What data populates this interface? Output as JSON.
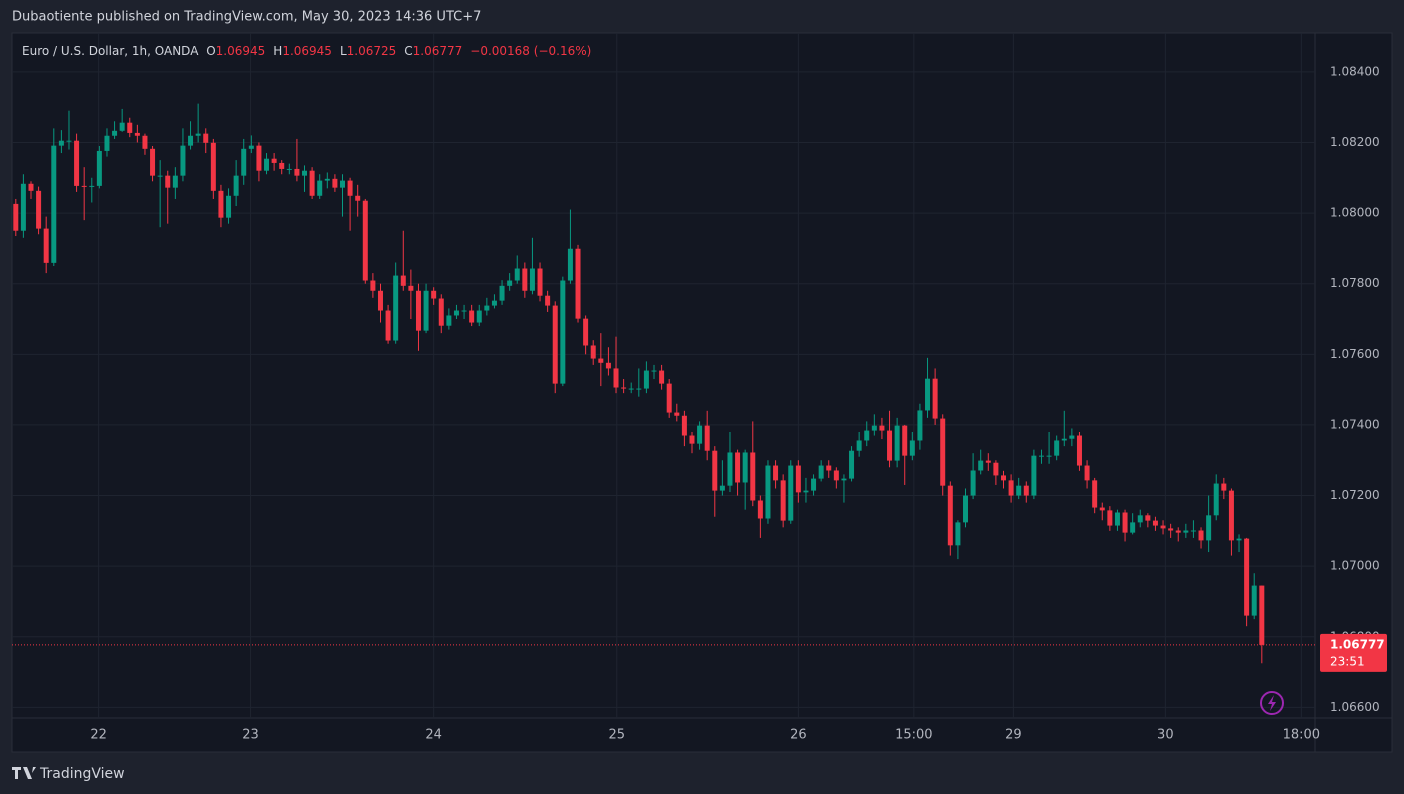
{
  "header": {
    "title": "Dubaotiente published on TradingView.com, May 30, 2023 14:36 UTC+7"
  },
  "footer": {
    "brand": "TradingView"
  },
  "chart_data": {
    "type": "candlestick",
    "legend": {
      "symbol": "Euro / U.S. Dollar, 1h, OANDA",
      "fields": [
        {
          "label": "O",
          "value": "1.06945"
        },
        {
          "label": "H",
          "value": "1.06945"
        },
        {
          "label": "L",
          "value": "1.06725"
        },
        {
          "label": "C",
          "value": "1.06777"
        }
      ],
      "change": "−0.00168 (−0.16%)"
    },
    "countdown": "23:51",
    "up_color": "#089981",
    "down_color": "#f23645",
    "grid": true,
    "ylim": [
      1.0657,
      1.0851
    ],
    "yticks": [
      {
        "value": 1.084,
        "label": "1.08400"
      },
      {
        "value": 1.082,
        "label": "1.08200"
      },
      {
        "value": 1.08,
        "label": "1.08000"
      },
      {
        "value": 1.078,
        "label": "1.07800"
      },
      {
        "value": 1.076,
        "label": "1.07600"
      },
      {
        "value": 1.074,
        "label": "1.07400"
      },
      {
        "value": 1.072,
        "label": "1.07200"
      },
      {
        "value": 1.07,
        "label": "1.07000"
      },
      {
        "value": 1.068,
        "label": "1.06800"
      },
      {
        "value": 1.066,
        "label": "1.06600"
      }
    ],
    "xlim": [
      -0.5,
      171
    ],
    "xticks": [
      {
        "value": 10.9,
        "label": "22"
      },
      {
        "value": 30.9,
        "label": "23"
      },
      {
        "value": 55,
        "label": "24"
      },
      {
        "value": 79.1,
        "label": "25"
      },
      {
        "value": 103,
        "label": "26"
      },
      {
        "value": 118.2,
        "label": "15:00"
      },
      {
        "value": 131.3,
        "label": "29"
      },
      {
        "value": 151.3,
        "label": "30"
      },
      {
        "value": 169.2,
        "label": "18:00"
      }
    ],
    "open": [
      1.08026,
      1.0795,
      1.08083,
      1.08063,
      1.07956,
      1.07859,
      1.08191,
      1.08205,
      1.08205,
      1.08077,
      1.08075,
      1.08077,
      1.08176,
      1.08219,
      1.08233,
      1.08256,
      1.08227,
      1.08219,
      1.08182,
      1.08106,
      1.08106,
      1.08072,
      1.08106,
      1.08191,
      1.08219,
      1.08225,
      1.08199,
      1.08063,
      1.07987,
      1.08049,
      1.08106,
      1.08182,
      1.08191,
      1.0812,
      1.08154,
      1.08142,
      1.08125,
      1.08125,
      1.08106,
      1.0812,
      1.08049,
      1.08092,
      1.08097,
      1.08072,
      1.08092,
      1.08049,
      1.08035,
      1.07809,
      1.0778,
      1.07724,
      1.07639,
      1.07823,
      1.07794,
      1.0778,
      1.07667,
      1.0778,
      1.07758,
      1.07681,
      1.0771,
      1.07724,
      1.07724,
      1.0769,
      1.07724,
      1.07738,
      1.07752,
      1.07794,
      1.07809,
      1.07843,
      1.0778,
      1.07843,
      1.07766,
      1.07738,
      1.07517,
      1.07809,
      1.07899,
      1.07701,
      1.07625,
      1.07588,
      1.07576,
      1.0756,
      1.07506,
      1.07503,
      1.07503,
      1.07503,
      1.07554,
      1.07554,
      1.07517,
      1.07435,
      1.07426,
      1.0737,
      1.07347,
      1.07398,
      1.07327,
      1.07214,
      1.07228,
      1.07322,
      1.07237,
      1.07322,
      1.07186,
      1.07135,
      1.07285,
      1.07243,
      1.07129,
      1.07285,
      1.07209,
      1.07214,
      1.07248,
      1.07285,
      1.07271,
      1.07243,
      1.07248,
      1.07327,
      1.07356,
      1.07384,
      1.07398,
      1.07384,
      1.07299,
      1.07398,
      1.07313,
      1.07356,
      1.07441,
      1.07531,
      1.07418,
      1.07228,
      1.07059,
      1.07124,
      1.072,
      1.07271,
      1.07299,
      1.07293,
      1.07257,
      1.07243,
      1.072,
      1.07228,
      1.072,
      1.07313,
      1.07313,
      1.07313,
      1.07356,
      1.07361,
      1.0737,
      1.07285,
      1.07243,
      1.07166,
      1.07158,
      1.07115,
      1.07152,
      1.07095,
      1.07124,
      1.07144,
      1.07129,
      1.07115,
      1.07107,
      1.07101,
      1.07095,
      1.07101,
      1.07101,
      1.07073,
      1.07144,
      1.07234,
      1.07214,
      1.07073,
      1.07078,
      1.0686,
      1.06945
    ],
    "high": [
      1.0804,
      1.0811,
      1.0809,
      1.08075,
      1.0799,
      1.0824,
      1.08235,
      1.0829,
      1.08225,
      1.0813,
      1.081,
      1.0819,
      1.0824,
      1.0826,
      1.08295,
      1.0827,
      1.0825,
      1.08225,
      1.0819,
      1.0815,
      1.0812,
      1.0813,
      1.0824,
      1.0826,
      1.0831,
      1.0824,
      1.0821,
      1.0808,
      1.0807,
      1.0815,
      1.0821,
      1.0822,
      1.082,
      1.0817,
      1.0817,
      1.0815,
      1.0814,
      1.0821,
      1.08135,
      1.0813,
      1.0811,
      1.08115,
      1.0811,
      1.0811,
      1.081,
      1.0808,
      1.0804,
      1.0783,
      1.078,
      1.0774,
      1.0786,
      1.0795,
      1.0784,
      1.078,
      1.078,
      1.0779,
      1.0777,
      1.0773,
      1.0774,
      1.0774,
      1.0774,
      1.0774,
      1.0776,
      1.0777,
      1.0781,
      1.0783,
      1.0788,
      1.0786,
      1.0793,
      1.0786,
      1.0778,
      1.0775,
      1.0782,
      1.0801,
      1.0791,
      1.0771,
      1.0764,
      1.0766,
      1.0762,
      1.0765,
      1.0753,
      1.0752,
      1.0756,
      1.0758,
      1.0757,
      1.0757,
      1.0753,
      1.0746,
      1.0744,
      1.0738,
      1.0741,
      1.0744,
      1.0734,
      1.073,
      1.0738,
      1.0733,
      1.0733,
      1.0741,
      1.072,
      1.073,
      1.073,
      1.0726,
      1.073,
      1.073,
      1.0725,
      1.0726,
      1.073,
      1.073,
      1.0728,
      1.0726,
      1.0734,
      1.0738,
      1.0741,
      1.0743,
      1.0742,
      1.0744,
      1.0742,
      1.074,
      1.0738,
      1.0746,
      1.0759,
      1.0756,
      1.0743,
      1.0724,
      1.0713,
      1.0722,
      1.0732,
      1.0733,
      1.0732,
      1.073,
      1.0727,
      1.0726,
      1.0725,
      1.0724,
      1.0733,
      1.0733,
      1.0738,
      1.0737,
      1.0744,
      1.0739,
      1.0738,
      1.073,
      1.0725,
      1.0718,
      1.0717,
      1.0716,
      1.0716,
      1.0715,
      1.0716,
      1.0715,
      1.0714,
      1.0713,
      1.0712,
      1.0711,
      1.0712,
      1.0713,
      1.0711,
      1.072,
      1.0726,
      1.0725,
      1.0722,
      1.0709,
      1.0708,
      1.0698,
      1.06945
    ],
    "low": [
      1.07935,
      1.0793,
      1.0804,
      1.0794,
      1.0783,
      1.0785,
      1.0817,
      1.0818,
      1.0806,
      1.0798,
      1.0803,
      1.0807,
      1.0816,
      1.0821,
      1.0823,
      1.08215,
      1.082,
      1.08165,
      1.0809,
      1.0796,
      1.0797,
      1.0804,
      1.0809,
      1.0818,
      1.082,
      1.0817,
      1.0804,
      1.0796,
      1.0797,
      1.0802,
      1.0808,
      1.0817,
      1.0809,
      1.0811,
      1.0812,
      1.0811,
      1.0811,
      1.0809,
      1.0806,
      1.0804,
      1.0804,
      1.0807,
      1.0806,
      1.0799,
      1.0795,
      1.0799,
      1.078,
      1.0776,
      1.0769,
      1.0763,
      1.0763,
      1.0778,
      1.077,
      1.0761,
      1.0766,
      1.0774,
      1.0766,
      1.0767,
      1.077,
      1.077,
      1.0768,
      1.0768,
      1.0771,
      1.0773,
      1.0774,
      1.0778,
      1.078,
      1.0776,
      1.0777,
      1.0775,
      1.0772,
      1.0749,
      1.0751,
      1.078,
      1.0769,
      1.076,
      1.0757,
      1.0751,
      1.0754,
      1.0749,
      1.0749,
      1.0749,
      1.0748,
      1.0749,
      1.0753,
      1.075,
      1.0742,
      1.0741,
      1.0734,
      1.0732,
      1.0733,
      1.073,
      1.0714,
      1.072,
      1.0721,
      1.072,
      1.0716,
      1.0717,
      1.0708,
      1.0712,
      1.0722,
      1.0711,
      1.0712,
      1.0718,
      1.0718,
      1.072,
      1.0724,
      1.0725,
      1.0722,
      1.0718,
      1.0724,
      1.0731,
      1.0734,
      1.0737,
      1.0736,
      1.0728,
      1.0728,
      1.0723,
      1.073,
      1.0733,
      1.0742,
      1.074,
      1.072,
      1.0703,
      1.0702,
      1.0711,
      1.0719,
      1.0726,
      1.0727,
      1.0723,
      1.0722,
      1.0718,
      1.0719,
      1.0718,
      1.0719,
      1.0729,
      1.0729,
      1.073,
      1.0734,
      1.0734,
      1.0727,
      1.0722,
      1.0715,
      1.0713,
      1.071,
      1.071,
      1.0707,
      1.0709,
      1.0711,
      1.0711,
      1.071,
      1.0709,
      1.0708,
      1.0707,
      1.0708,
      1.0708,
      1.0705,
      1.0704,
      1.0713,
      1.0719,
      1.0703,
      1.0704,
      1.0683,
      1.0685,
      1.06725
    ],
    "close": [
      1.0795,
      1.08083,
      1.08063,
      1.07956,
      1.07859,
      1.08191,
      1.08205,
      1.08205,
      1.08077,
      1.08075,
      1.08077,
      1.08176,
      1.08219,
      1.08233,
      1.08256,
      1.08227,
      1.08219,
      1.08182,
      1.08106,
      1.08106,
      1.08072,
      1.08106,
      1.08191,
      1.08219,
      1.08225,
      1.08199,
      1.08063,
      1.07987,
      1.08049,
      1.08106,
      1.08182,
      1.08191,
      1.0812,
      1.08154,
      1.08142,
      1.08125,
      1.08125,
      1.08106,
      1.0812,
      1.08049,
      1.08092,
      1.08097,
      1.08072,
      1.08092,
      1.08049,
      1.08035,
      1.07809,
      1.0778,
      1.07724,
      1.07639,
      1.07823,
      1.07794,
      1.0778,
      1.07667,
      1.0778,
      1.07758,
      1.07681,
      1.0771,
      1.07724,
      1.07724,
      1.0769,
      1.07724,
      1.07738,
      1.07752,
      1.07794,
      1.07809,
      1.07843,
      1.0778,
      1.07843,
      1.07766,
      1.07738,
      1.07517,
      1.07809,
      1.07899,
      1.07701,
      1.07625,
      1.07588,
      1.07576,
      1.0756,
      1.07506,
      1.07503,
      1.07503,
      1.07503,
      1.07554,
      1.07554,
      1.07517,
      1.07435,
      1.07426,
      1.0737,
      1.07347,
      1.07398,
      1.07327,
      1.07214,
      1.07228,
      1.07322,
      1.07237,
      1.07322,
      1.07186,
      1.07135,
      1.07285,
      1.07243,
      1.07129,
      1.07285,
      1.07209,
      1.07214,
      1.07248,
      1.07285,
      1.07271,
      1.07243,
      1.07248,
      1.07327,
      1.07356,
      1.07384,
      1.07398,
      1.07384,
      1.07299,
      1.07398,
      1.07313,
      1.07356,
      1.07441,
      1.07531,
      1.07418,
      1.07228,
      1.07059,
      1.07124,
      1.072,
      1.07271,
      1.07299,
      1.07293,
      1.07257,
      1.07243,
      1.072,
      1.07228,
      1.072,
      1.07313,
      1.07313,
      1.07313,
      1.07356,
      1.07361,
      1.0737,
      1.07285,
      1.07243,
      1.07166,
      1.07158,
      1.07115,
      1.07152,
      1.07095,
      1.07124,
      1.07144,
      1.07129,
      1.07115,
      1.07107,
      1.07101,
      1.07095,
      1.07101,
      1.07101,
      1.07073,
      1.07144,
      1.07234,
      1.07214,
      1.07073,
      1.07078,
      1.0686,
      1.06945,
      1.06777
    ]
  }
}
